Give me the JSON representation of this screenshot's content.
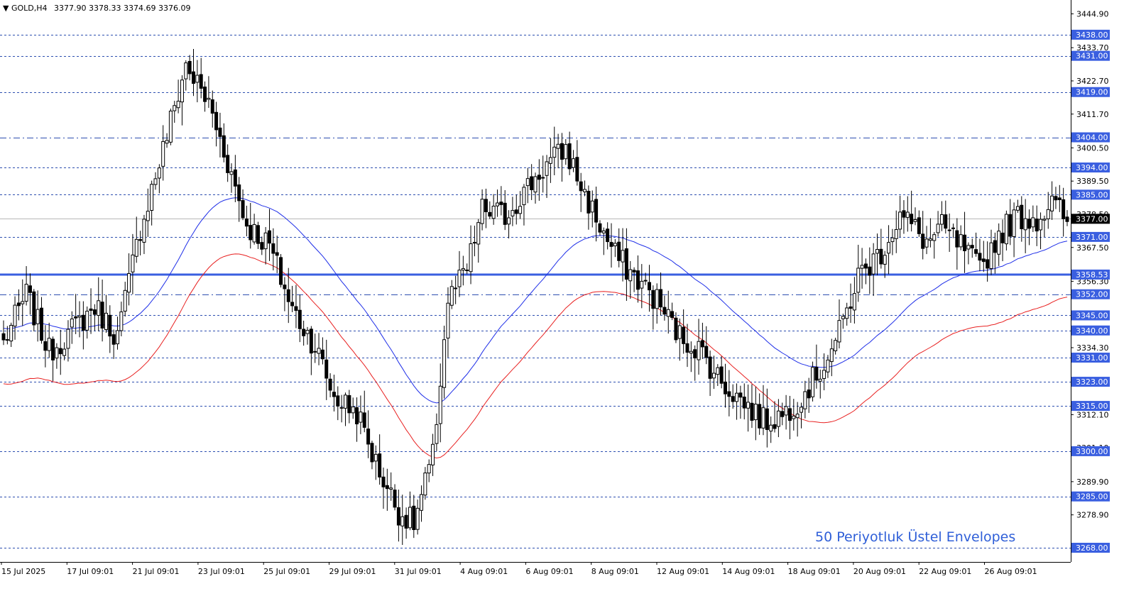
{
  "header": {
    "arrow": "▼",
    "symbol": "GOLD,H4",
    "ohlc": "3377.90 3378.33 3374.69 3376.09"
  },
  "annotation": "50 Periyotluk Üstel Envelopes",
  "chart_data": {
    "type": "candlestick",
    "y_range": [
      3263.3,
      3449.5
    ],
    "y_tick_labels": [
      "3444.90",
      "3433.70",
      "3422.70",
      "3411.70",
      "3400.50",
      "3389.50",
      "3378.50",
      "3367.50",
      "3356.30",
      "3345.20",
      "3334.30",
      "3323.20",
      "3312.10",
      "3301.10",
      "3289.90",
      "3278.90"
    ],
    "level_lines": [
      {
        "value": 3438.0,
        "label": "3438.00",
        "style": "dotted"
      },
      {
        "value": 3431.0,
        "label": "3431.00",
        "style": "dotted"
      },
      {
        "value": 3419.0,
        "label": "3419.00",
        "style": "dotted"
      },
      {
        "value": 3404.0,
        "label": "3404.00",
        "style": "dashdot"
      },
      {
        "value": 3394.0,
        "label": "3394.00",
        "style": "dotted"
      },
      {
        "value": 3385.0,
        "label": "3385.00",
        "style": "dotted"
      },
      {
        "value": 3371.0,
        "label": "3371.00",
        "style": "dotted"
      },
      {
        "value": 3352.0,
        "label": "3352.00",
        "style": "dashdot"
      },
      {
        "value": 3345.0,
        "label": "3345.00",
        "style": "dotted"
      },
      {
        "value": 3340.0,
        "label": "3340.00",
        "style": "dotted"
      },
      {
        "value": 3331.0,
        "label": "3331.00",
        "style": "dotted"
      },
      {
        "value": 3323.0,
        "label": "3323.00",
        "style": "dotted"
      },
      {
        "value": 3315.0,
        "label": "3315.00",
        "style": "dotted"
      },
      {
        "value": 3300.0,
        "label": "3300.00",
        "style": "dotted"
      },
      {
        "value": 3285.0,
        "label": "3285.00",
        "style": "dotted"
      },
      {
        "value": 3268.0,
        "label": "3268.00",
        "style": "dotted"
      }
    ],
    "horizontal_line": {
      "value": 3358.53,
      "label": "3358.53",
      "color": "#3a5fe0"
    },
    "current_price": {
      "value": 3377.0,
      "label": "3377.00"
    },
    "x_tick_labels": [
      "15 Jul 2025",
      "17 Jul 09:01",
      "21 Jul 09:01",
      "23 Jul 09:01",
      "25 Jul 09:01",
      "29 Jul 09:01",
      "31 Jul 09:01",
      "4 Aug 09:01",
      "6 Aug 09:01",
      "8 Aug 09:01",
      "12 Aug 09:01",
      "14 Aug 09:01",
      "18 Aug 09:01",
      "20 Aug 09:01",
      "22 Aug 09:01",
      "26 Aug 09:01"
    ],
    "path_anchors": [
      [
        0,
        3336
      ],
      [
        6,
        3352
      ],
      [
        12,
        3333
      ],
      [
        18,
        3340
      ],
      [
        24,
        3348
      ],
      [
        30,
        3338
      ],
      [
        36,
        3374
      ],
      [
        42,
        3400
      ],
      [
        48,
        3428
      ],
      [
        54,
        3415
      ],
      [
        59,
        3396
      ],
      [
        64,
        3375
      ],
      [
        70,
        3368
      ],
      [
        76,
        3347
      ],
      [
        82,
        3335
      ],
      [
        87,
        3318
      ],
      [
        93,
        3313
      ],
      [
        98,
        3296
      ],
      [
        104,
        3280
      ],
      [
        108,
        3276
      ],
      [
        113,
        3298
      ],
      [
        117,
        3350
      ],
      [
        122,
        3360
      ],
      [
        126,
        3380
      ],
      [
        132,
        3378
      ],
      [
        137,
        3386
      ],
      [
        143,
        3395
      ],
      [
        148,
        3400
      ],
      [
        153,
        3385
      ],
      [
        158,
        3372
      ],
      [
        161,
        3365
      ],
      [
        166,
        3358
      ],
      [
        172,
        3350
      ],
      [
        178,
        3338
      ],
      [
        183,
        3334
      ],
      [
        189,
        3323
      ],
      [
        195,
        3316
      ],
      [
        200,
        3310
      ],
      [
        205,
        3312
      ],
      [
        210,
        3318
      ],
      [
        215,
        3327
      ],
      [
        220,
        3339
      ],
      [
        225,
        3358
      ],
      [
        231,
        3366
      ],
      [
        236,
        3378
      ],
      [
        239,
        3375
      ],
      [
        243,
        3369
      ],
      [
        247,
        3374
      ],
      [
        252,
        3368
      ],
      [
        257,
        3360
      ],
      [
        262,
        3372
      ],
      [
        267,
        3378
      ],
      [
        272,
        3377
      ],
      [
        276,
        3382
      ],
      [
        280,
        3377
      ]
    ],
    "moving_average": {
      "color": "#1f2fe8",
      "period": 50
    },
    "envelope_lower": {
      "color": "#e82020"
    },
    "series": [
      {
        "name": "GOLD,H4",
        "values": "ohlc"
      }
    ]
  },
  "colors": {
    "background": "#ffffff",
    "bull_candle": "#ffffff",
    "bear_candle": "#000000",
    "grid": "#2d4fb0",
    "label_bg": "#3a5fe0",
    "label_text": "#ffffff",
    "current_price_line": "#b8b8b8"
  }
}
